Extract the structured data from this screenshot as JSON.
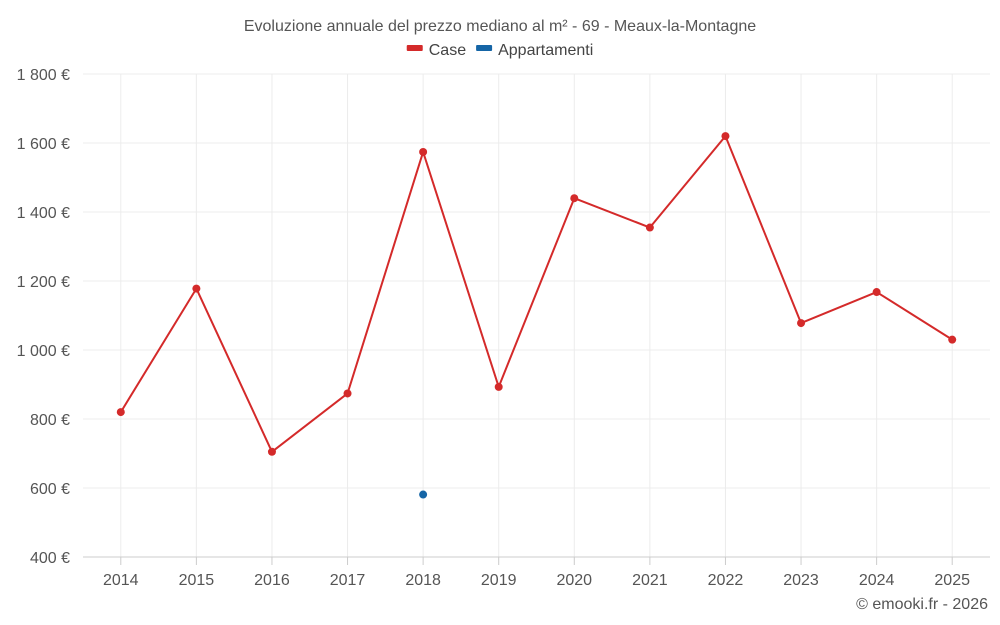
{
  "chart_data": {
    "type": "line",
    "title": "Evoluzione annuale del prezzo mediano al m² - 69 - Meaux-la-Montagne",
    "categories": [
      "2014",
      "2015",
      "2016",
      "2017",
      "2018",
      "2019",
      "2020",
      "2021",
      "2022",
      "2023",
      "2024",
      "2025"
    ],
    "series": [
      {
        "name": "Case",
        "color": "#d42a2a",
        "values": [
          820,
          1178,
          705,
          874,
          1574,
          893,
          1440,
          1355,
          1620,
          1078,
          1168,
          1030
        ]
      },
      {
        "name": "Appartamenti",
        "color": "#1565a6",
        "values": [
          null,
          null,
          null,
          null,
          581,
          null,
          null,
          null,
          null,
          null,
          null,
          null
        ]
      }
    ],
    "ylim": [
      400,
      1800
    ],
    "yticks": [
      400,
      600,
      800,
      1000,
      1200,
      1400,
      1600,
      1800
    ],
    "ytick_labels": [
      "400 €",
      "600 €",
      "800 €",
      "1 000 €",
      "1 200 €",
      "1 400 €",
      "1 600 €",
      "1 800 €"
    ],
    "xlabel": "",
    "ylabel": "",
    "grid": true,
    "legend_position": "top-center"
  },
  "credit": "© emooki.fr - 2026"
}
